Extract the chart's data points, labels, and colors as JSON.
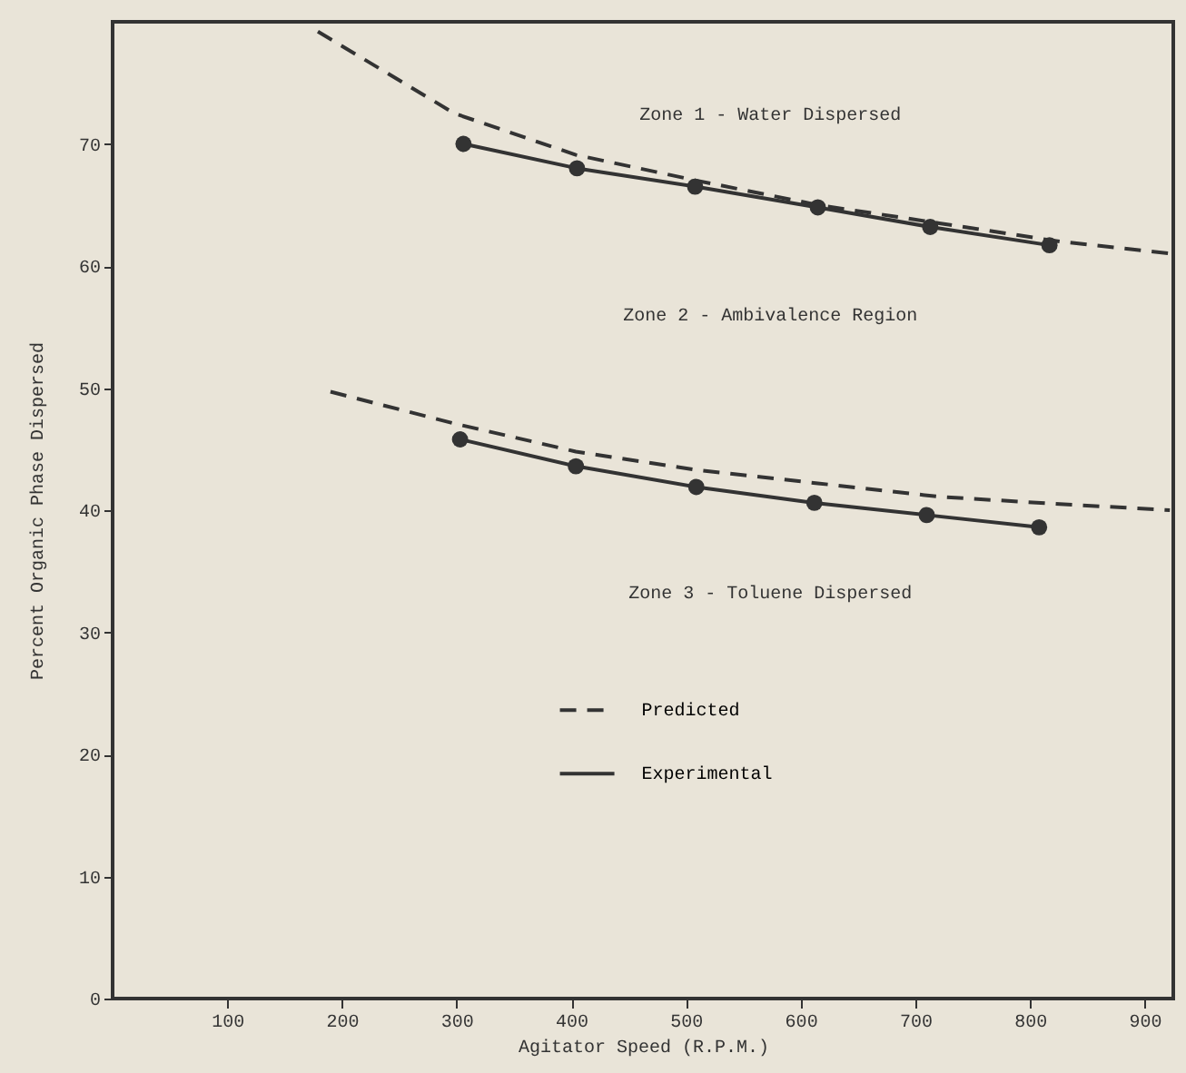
{
  "chart_data": {
    "type": "line",
    "xlabel": "Agitator Speed (R.P.M.)",
    "ylabel": "Percent Organic Phase Dispersed",
    "xlim": [
      0,
      925
    ],
    "xticks": [
      100,
      200,
      300,
      400,
      500,
      600,
      700,
      800,
      900
    ],
    "ylim": [
      0,
      80
    ],
    "yticks": [
      0,
      10,
      20,
      30,
      40,
      50,
      60,
      70
    ],
    "grid": false,
    "legend": "center",
    "annotations": [
      "Zone 1 - Water Dispersed",
      "Zone 2 - Ambivalence Region",
      "Zone 3 - Toluene Dispersed"
    ],
    "series": [
      {
        "name": "Predicted",
        "color": "#333333",
        "line_style": "dashed",
        "marker": "none",
        "x": [
          179,
          298,
          404,
          509,
          615,
          721,
          826,
          925
        ],
        "values": [
          79.2,
          72.5,
          69.1,
          67.0,
          65.0,
          63.5,
          62.0,
          61.0
        ]
      },
      {
        "name": "Experimental",
        "color": "#333333",
        "line_style": "solid",
        "marker": "circle",
        "x": [
          306,
          405,
          508,
          615,
          713,
          817
        ],
        "values": [
          70.0,
          68.0,
          66.5,
          64.8,
          63.2,
          61.7
        ]
      },
      {
        "color": "#333333",
        "line_style": "dashed",
        "marker": "none",
        "x": [
          190,
          298,
          404,
          509,
          615,
          721,
          826,
          922
        ],
        "values": [
          49.7,
          47.1,
          44.8,
          43.3,
          42.2,
          41.1,
          40.5,
          40.0
        ]
      },
      {
        "color": "#333333",
        "line_style": "solid",
        "marker": "circle",
        "x": [
          303,
          404,
          509,
          612,
          710,
          808
        ],
        "values": [
          45.8,
          43.6,
          41.9,
          40.6,
          39.6,
          38.6
        ]
      }
    ]
  }
}
